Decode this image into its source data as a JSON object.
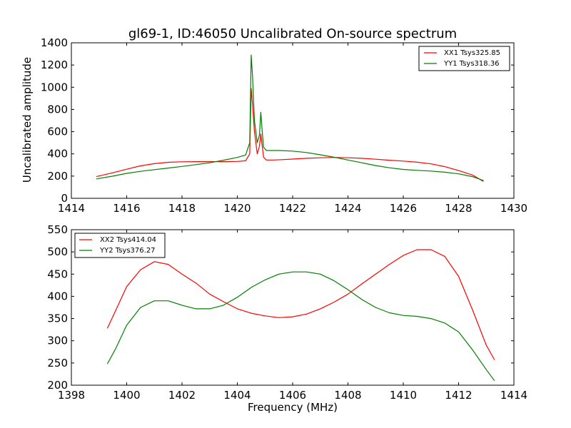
{
  "chart_data": [
    {
      "type": "line",
      "title": "gl69-1, ID:46050 Uncalibrated On-source spectrum",
      "xlabel": "",
      "ylabel": "Uncalibrated amplitude",
      "xlim": [
        1414,
        1430
      ],
      "ylim": [
        0,
        1400
      ],
      "xticks": [
        "1414",
        "1416",
        "1418",
        "1420",
        "1422",
        "1424",
        "1426",
        "1428",
        "1430"
      ],
      "yticks": [
        "0",
        "200",
        "400",
        "600",
        "800",
        "1000",
        "1200",
        "1400"
      ],
      "legend_position": "top-right",
      "grid": false,
      "series": [
        {
          "name": "XX1 Tsys325.85",
          "color": "#ff0000",
          "points": [
            [
              1414.9,
              195
            ],
            [
              1415.5,
              230
            ],
            [
              1416,
              262
            ],
            [
              1416.5,
              292
            ],
            [
              1417,
              312
            ],
            [
              1417.5,
              324
            ],
            [
              1418,
              329
            ],
            [
              1418.5,
              330
            ],
            [
              1419,
              330
            ],
            [
              1419.5,
              330
            ],
            [
              1420,
              332
            ],
            [
              1420.3,
              338
            ],
            [
              1420.45,
              400
            ],
            [
              1420.5,
              990
            ],
            [
              1420.55,
              840
            ],
            [
              1420.62,
              600
            ],
            [
              1420.72,
              400
            ],
            [
              1420.8,
              470
            ],
            [
              1420.85,
              580
            ],
            [
              1420.9,
              470
            ],
            [
              1420.95,
              370
            ],
            [
              1421.05,
              345
            ],
            [
              1421.3,
              345
            ],
            [
              1421.6,
              348
            ],
            [
              1422,
              353
            ],
            [
              1422.5,
              360
            ],
            [
              1423,
              365
            ],
            [
              1423.5,
              368
            ],
            [
              1424,
              365
            ],
            [
              1424.5,
              360
            ],
            [
              1425,
              352
            ],
            [
              1425.5,
              343
            ],
            [
              1426,
              335
            ],
            [
              1426.5,
              325
            ],
            [
              1427,
              310
            ],
            [
              1427.5,
              285
            ],
            [
              1428,
              250
            ],
            [
              1428.5,
              210
            ],
            [
              1428.9,
              152
            ]
          ]
        },
        {
          "name": "YY1 Tsys318.36",
          "color": "#008000",
          "points": [
            [
              1414.9,
              175
            ],
            [
              1415.5,
              200
            ],
            [
              1416,
              225
            ],
            [
              1416.5,
              243
            ],
            [
              1417,
              258
            ],
            [
              1417.5,
              272
            ],
            [
              1418,
              287
            ],
            [
              1418.5,
              303
            ],
            [
              1419,
              320
            ],
            [
              1419.5,
              343
            ],
            [
              1420,
              368
            ],
            [
              1420.3,
              390
            ],
            [
              1420.45,
              500
            ],
            [
              1420.5,
              1290
            ],
            [
              1420.55,
              1100
            ],
            [
              1420.62,
              700
            ],
            [
              1420.72,
              500
            ],
            [
              1420.8,
              570
            ],
            [
              1420.85,
              775
            ],
            [
              1420.9,
              600
            ],
            [
              1420.95,
              460
            ],
            [
              1421.05,
              430
            ],
            [
              1421.5,
              430
            ],
            [
              1422,
              425
            ],
            [
              1422.5,
              412
            ],
            [
              1423,
              392
            ],
            [
              1423.5,
              370
            ],
            [
              1424,
              345
            ],
            [
              1424.5,
              320
            ],
            [
              1425,
              295
            ],
            [
              1425.5,
              275
            ],
            [
              1426,
              260
            ],
            [
              1426.5,
              252
            ],
            [
              1427,
              245
            ],
            [
              1427.5,
              235
            ],
            [
              1428,
              220
            ],
            [
              1428.5,
              195
            ],
            [
              1428.9,
              160
            ]
          ]
        }
      ]
    },
    {
      "type": "line",
      "title": "",
      "xlabel": "Frequency (MHz)",
      "ylabel": "",
      "xlim": [
        1398,
        1414
      ],
      "ylim": [
        200,
        550
      ],
      "xticks": [
        "1398",
        "1400",
        "1402",
        "1404",
        "1406",
        "1408",
        "1410",
        "1412",
        "1414"
      ],
      "yticks": [
        "200",
        "250",
        "300",
        "350",
        "400",
        "450",
        "500",
        "550"
      ],
      "legend_position": "top-left",
      "grid": false,
      "series": [
        {
          "name": "XX2 Tsys414.04",
          "color": "#ff0000",
          "points": [
            [
              1399.3,
              328
            ],
            [
              1399.6,
              368
            ],
            [
              1400,
              422
            ],
            [
              1400.5,
              460
            ],
            [
              1401,
              478
            ],
            [
              1401.5,
              472
            ],
            [
              1402,
              450
            ],
            [
              1402.5,
              430
            ],
            [
              1403,
              405
            ],
            [
              1403.5,
              388
            ],
            [
              1404,
              372
            ],
            [
              1404.5,
              362
            ],
            [
              1405,
              356
            ],
            [
              1405.5,
              352
            ],
            [
              1406,
              354
            ],
            [
              1406.5,
              360
            ],
            [
              1407,
              372
            ],
            [
              1407.5,
              387
            ],
            [
              1408,
              405
            ],
            [
              1408.5,
              428
            ],
            [
              1409,
              450
            ],
            [
              1409.5,
              472
            ],
            [
              1410,
              492
            ],
            [
              1410.5,
              505
            ],
            [
              1411,
              505
            ],
            [
              1411.5,
              490
            ],
            [
              1412,
              445
            ],
            [
              1412.5,
              370
            ],
            [
              1413,
              290
            ],
            [
              1413.3,
              257
            ]
          ]
        },
        {
          "name": "YY2 Tsys376.27",
          "color": "#008000",
          "points": [
            [
              1399.3,
              248
            ],
            [
              1399.6,
              282
            ],
            [
              1400,
              335
            ],
            [
              1400.5,
              375
            ],
            [
              1401,
              390
            ],
            [
              1401.5,
              390
            ],
            [
              1402,
              380
            ],
            [
              1402.5,
              372
            ],
            [
              1403,
              372
            ],
            [
              1403.5,
              380
            ],
            [
              1404,
              398
            ],
            [
              1404.5,
              420
            ],
            [
              1405,
              437
            ],
            [
              1405.5,
              450
            ],
            [
              1406,
              455
            ],
            [
              1406.5,
              455
            ],
            [
              1407,
              450
            ],
            [
              1407.5,
              435
            ],
            [
              1408,
              415
            ],
            [
              1408.5,
              393
            ],
            [
              1409,
              375
            ],
            [
              1409.5,
              363
            ],
            [
              1410,
              357
            ],
            [
              1410.5,
              355
            ],
            [
              1411,
              350
            ],
            [
              1411.5,
              340
            ],
            [
              1412,
              320
            ],
            [
              1412.5,
              280
            ],
            [
              1413,
              235
            ],
            [
              1413.3,
              210
            ]
          ]
        }
      ]
    }
  ]
}
